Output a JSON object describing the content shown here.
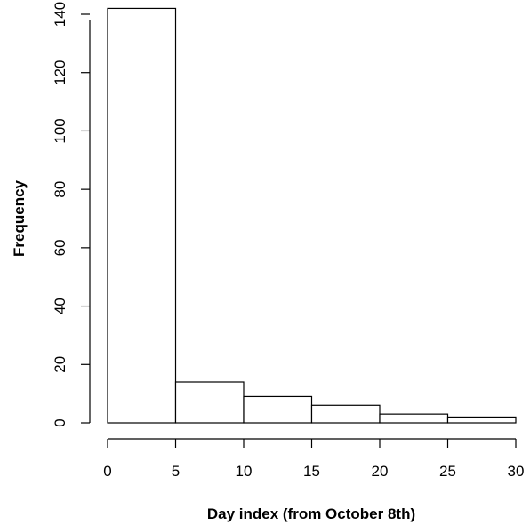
{
  "chart_data": {
    "type": "bar",
    "subtype": "histogram",
    "title": "",
    "xlabel": "Day index (from October 8th)",
    "ylabel": "Frequency",
    "bins": [
      {
        "from": 0,
        "to": 5,
        "count": 142
      },
      {
        "from": 5,
        "to": 10,
        "count": 14
      },
      {
        "from": 10,
        "to": 15,
        "count": 9
      },
      {
        "from": 15,
        "to": 20,
        "count": 6
      },
      {
        "from": 20,
        "to": 25,
        "count": 3
      },
      {
        "from": 25,
        "to": 30,
        "count": 2
      }
    ],
    "xlim": [
      0,
      30
    ],
    "ylim": [
      0,
      140
    ],
    "x_ticks": [
      "0",
      "5",
      "10",
      "15",
      "20",
      "25",
      "30"
    ],
    "y_ticks": [
      "0",
      "20",
      "40",
      "60",
      "80",
      "100",
      "120",
      "140"
    ],
    "grid": false,
    "colors": {
      "bar_fill": "#ffffff",
      "bar_stroke": "#000000"
    }
  }
}
